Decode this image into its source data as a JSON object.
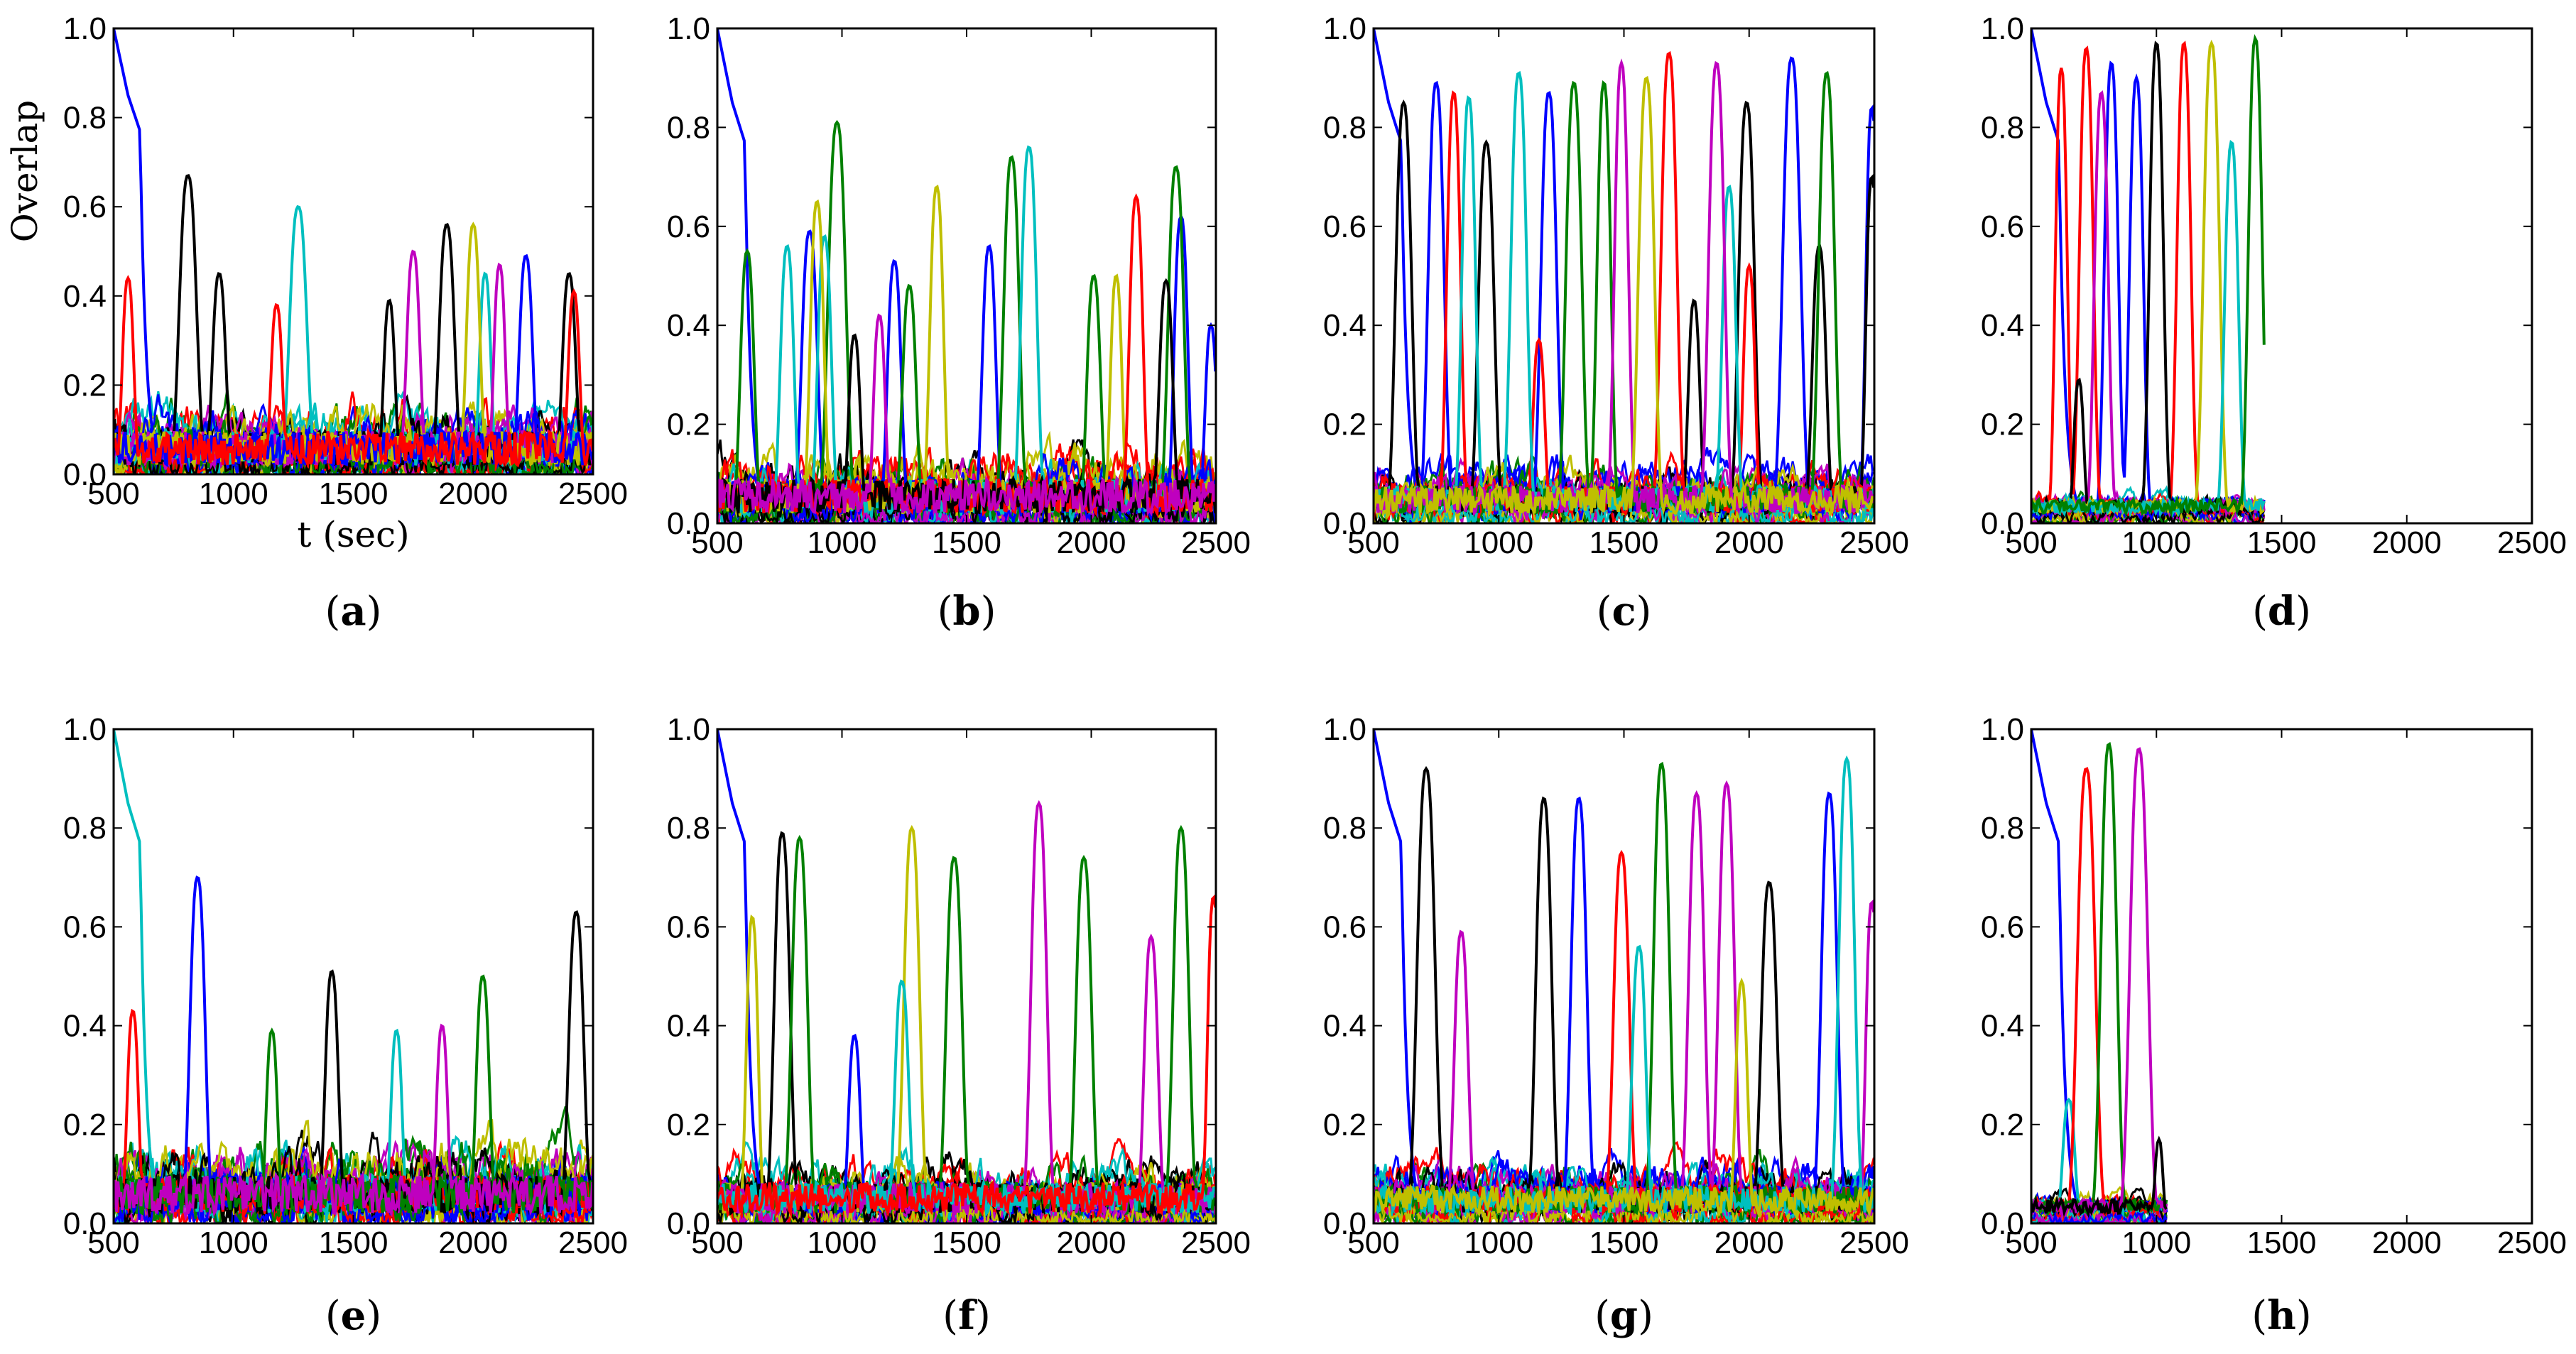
{
  "figure": {
    "colors": [
      "#0000ff",
      "#008000",
      "#ff0000",
      "#00bfbf",
      "#bf00bf",
      "#bfbf00",
      "#000000"
    ],
    "ylabel": "Overlap",
    "xlabel": "t (sec)"
  },
  "chart_data": [
    {
      "type": "line",
      "panel": "a",
      "label_open": "(",
      "label_letter": "a",
      "label_close": ")",
      "xlim": [
        500,
        2500
      ],
      "ylim": [
        0,
        1
      ],
      "xticks": [
        "500",
        "1000",
        "1500",
        "2000",
        "2500"
      ],
      "yticks": [
        "0.0",
        "0.2",
        "0.4",
        "0.6",
        "0.8",
        "1.0"
      ],
      "xlabel": "t (sec)",
      "ylabel": "Overlap",
      "end_x": 2500,
      "noise_level": 0.22,
      "series": [
        {
          "name": "initial",
          "color": "#0000ff",
          "init_decay": true,
          "peaks": []
        },
        {
          "name": "black",
          "color": "#000000",
          "peaks": [
            [
              810,
              0.67,
              45
            ],
            [
              940,
              0.45,
              35
            ],
            [
              1650,
              0.39,
              30
            ],
            [
              1890,
              0.56,
              40
            ],
            [
              2400,
              0.45,
              35
            ]
          ]
        },
        {
          "name": "cyan",
          "color": "#00bfbf",
          "peaks": [
            [
              1270,
              0.6,
              45
            ],
            [
              2050,
              0.45,
              30
            ]
          ]
        },
        {
          "name": "magenta",
          "color": "#bf00bf",
          "peaks": [
            [
              1750,
              0.5,
              35
            ],
            [
              2110,
              0.47,
              30
            ]
          ]
        },
        {
          "name": "yellow",
          "color": "#bfbf00",
          "peaks": [
            [
              2000,
              0.56,
              35
            ]
          ]
        },
        {
          "name": "blue2",
          "color": "#0000ff",
          "peaks": [
            [
              2220,
              0.49,
              35
            ]
          ]
        },
        {
          "name": "red",
          "color": "#ff0000",
          "peaks": [
            [
              560,
              0.44,
              30
            ],
            [
              1180,
              0.38,
              30
            ],
            [
              2420,
              0.41,
              30
            ]
          ]
        }
      ]
    },
    {
      "type": "line",
      "panel": "b",
      "label_open": "(",
      "label_letter": "b",
      "label_close": ")",
      "xlim": [
        500,
        2500
      ],
      "ylim": [
        0,
        1
      ],
      "xticks": [
        "500",
        "1000",
        "1500",
        "2000",
        "2500"
      ],
      "yticks": [
        "0.0",
        "0.2",
        "0.4",
        "0.6",
        "0.8",
        "1.0"
      ],
      "end_x": 2500,
      "noise_level": 0.2,
      "series": [
        {
          "name": "initial",
          "color": "#0000ff",
          "init_decay": true,
          "peaks": [
            [
              870,
              0.59,
              40
            ],
            [
              1210,
              0.53,
              35
            ],
            [
              1590,
              0.56,
              35
            ],
            [
              2360,
              0.62,
              35
            ],
            [
              2480,
              0.4,
              30
            ]
          ]
        },
        {
          "name": "green",
          "color": "#008000",
          "peaks": [
            [
              620,
              0.55,
              35
            ],
            [
              980,
              0.81,
              45
            ],
            [
              1270,
              0.48,
              35
            ],
            [
              1680,
              0.74,
              40
            ],
            [
              2010,
              0.5,
              35
            ],
            [
              2340,
              0.72,
              40
            ]
          ]
        },
        {
          "name": "cyan",
          "color": "#00bfbf",
          "peaks": [
            [
              780,
              0.56,
              35
            ],
            [
              930,
              0.58,
              35
            ],
            [
              1750,
              0.76,
              40
            ]
          ]
        },
        {
          "name": "yellow",
          "color": "#bfbf00",
          "peaks": [
            [
              900,
              0.65,
              35
            ],
            [
              1380,
              0.68,
              35
            ],
            [
              2100,
              0.5,
              30
            ]
          ]
        },
        {
          "name": "red",
          "color": "#ff0000",
          "peaks": [
            [
              2180,
              0.66,
              35
            ]
          ]
        },
        {
          "name": "black",
          "color": "#000000",
          "peaks": [
            [
              1050,
              0.38,
              30
            ],
            [
              2300,
              0.49,
              35
            ]
          ]
        },
        {
          "name": "magenta",
          "color": "#bf00bf",
          "peaks": [
            [
              1150,
              0.42,
              30
            ]
          ]
        }
      ]
    },
    {
      "type": "line",
      "panel": "c",
      "label_open": "(",
      "label_letter": "c",
      "label_close": ")",
      "xlim": [
        500,
        2500
      ],
      "ylim": [
        0,
        1
      ],
      "xticks": [
        "500",
        "1000",
        "1500",
        "2000",
        "2500"
      ],
      "yticks": [
        "0.0",
        "0.2",
        "0.4",
        "0.6",
        "0.8",
        "1.0"
      ],
      "end_x": 2500,
      "noise_level": 0.16,
      "series": [
        {
          "name": "initial",
          "color": "#0000ff",
          "init_decay": true,
          "peaks": [
            [
              750,
              0.89,
              40
            ],
            [
              1200,
              0.87,
              40
            ],
            [
              2170,
              0.94,
              45
            ],
            [
              2490,
              0.84,
              30
            ]
          ]
        },
        {
          "name": "black",
          "color": "#000000",
          "peaks": [
            [
              620,
              0.85,
              40
            ],
            [
              950,
              0.77,
              40
            ],
            [
              1780,
              0.45,
              30
            ],
            [
              1990,
              0.85,
              40
            ],
            [
              2280,
              0.56,
              35
            ],
            [
              2490,
              0.7,
              30
            ]
          ]
        },
        {
          "name": "red",
          "color": "#ff0000",
          "peaks": [
            [
              820,
              0.87,
              35
            ],
            [
              1160,
              0.37,
              30
            ],
            [
              1680,
              0.95,
              40
            ],
            [
              2000,
              0.52,
              30
            ]
          ]
        },
        {
          "name": "cyan",
          "color": "#00bfbf",
          "peaks": [
            [
              880,
              0.86,
              35
            ],
            [
              1080,
              0.91,
              40
            ],
            [
              1920,
              0.68,
              35
            ]
          ]
        },
        {
          "name": "green",
          "color": "#008000",
          "peaks": [
            [
              1300,
              0.89,
              40
            ],
            [
              1420,
              0.89,
              35
            ],
            [
              2310,
              0.91,
              40
            ]
          ]
        },
        {
          "name": "magenta",
          "color": "#bf00bf",
          "peaks": [
            [
              1490,
              0.93,
              35
            ],
            [
              1870,
              0.93,
              40
            ]
          ]
        },
        {
          "name": "yellow",
          "color": "#bfbf00",
          "peaks": [
            [
              1590,
              0.9,
              40
            ]
          ]
        }
      ]
    },
    {
      "type": "line",
      "panel": "d",
      "label_open": "(",
      "label_letter": "d",
      "label_close": ")",
      "xlim": [
        500,
        2500
      ],
      "ylim": [
        0,
        1
      ],
      "xticks": [
        "500",
        "1000",
        "1500",
        "2000",
        "2500"
      ],
      "yticks": [
        "0.0",
        "0.2",
        "0.4",
        "0.6",
        "0.8",
        "1.0"
      ],
      "end_x": 1430,
      "noise_level": 0.08,
      "series": [
        {
          "name": "initial",
          "color": "#0000ff",
          "init_decay": true,
          "peaks": [
            [
              820,
              0.93,
              35
            ],
            [
              920,
              0.9,
              35
            ]
          ]
        },
        {
          "name": "red",
          "color": "#ff0000",
          "peaks": [
            [
              620,
              0.92,
              30
            ],
            [
              720,
              0.96,
              35
            ],
            [
              1110,
              0.97,
              35
            ]
          ]
        },
        {
          "name": "magenta",
          "color": "#bf00bf",
          "peaks": [
            [
              780,
              0.87,
              35
            ]
          ]
        },
        {
          "name": "black",
          "color": "#000000",
          "peaks": [
            [
              690,
              0.29,
              25
            ],
            [
              1000,
              0.97,
              35
            ]
          ]
        },
        {
          "name": "yellow",
          "color": "#bfbf00",
          "peaks": [
            [
              1220,
              0.97,
              40
            ]
          ]
        },
        {
          "name": "cyan",
          "color": "#00bfbf",
          "peaks": [
            [
              1300,
              0.77,
              35
            ]
          ]
        },
        {
          "name": "green",
          "color": "#008000",
          "peaks": [
            [
              1395,
              0.98,
              35
            ]
          ]
        }
      ]
    },
    {
      "type": "line",
      "panel": "e",
      "label_open": "(",
      "label_letter": "e",
      "label_close": ")",
      "xlim": [
        500,
        2500
      ],
      "ylim": [
        0,
        1
      ],
      "xticks": [
        "500",
        "1000",
        "1500",
        "2000",
        "2500"
      ],
      "yticks": [
        "0.0",
        "0.2",
        "0.4",
        "0.6",
        "0.8",
        "1.0"
      ],
      "end_x": 2500,
      "noise_level": 0.22,
      "series": [
        {
          "name": "initial",
          "color": "#00bfbf",
          "init_decay": true,
          "peaks": [
            [
              1680,
              0.39,
              30
            ]
          ]
        },
        {
          "name": "blue",
          "color": "#0000ff",
          "peaks": [
            [
              850,
              0.7,
              40
            ]
          ]
        },
        {
          "name": "red",
          "color": "#ff0000",
          "peaks": [
            [
              580,
              0.43,
              30
            ]
          ]
        },
        {
          "name": "black",
          "color": "#000000",
          "peaks": [
            [
              1410,
              0.51,
              35
            ],
            [
              2430,
              0.63,
              40
            ]
          ]
        },
        {
          "name": "green",
          "color": "#008000",
          "peaks": [
            [
              1160,
              0.39,
              30
            ],
            [
              2040,
              0.5,
              35
            ]
          ]
        },
        {
          "name": "magenta",
          "color": "#bf00bf",
          "peaks": [
            [
              1870,
              0.4,
              30
            ]
          ]
        }
      ]
    },
    {
      "type": "line",
      "panel": "f",
      "label_open": "(",
      "label_letter": "f",
      "label_close": ")",
      "xlim": [
        500,
        2500
      ],
      "ylim": [
        0,
        1
      ],
      "xticks": [
        "500",
        "1000",
        "1500",
        "2000",
        "2500"
      ],
      "yticks": [
        "0.0",
        "0.2",
        "0.4",
        "0.6",
        "0.8",
        "1.0"
      ],
      "end_x": 2500,
      "noise_level": 0.18,
      "series": [
        {
          "name": "initial",
          "color": "#0000ff",
          "init_decay": true,
          "peaks": [
            [
              1050,
              0.38,
              30
            ]
          ]
        },
        {
          "name": "yellow",
          "color": "#bfbf00",
          "peaks": [
            [
              640,
              0.62,
              30
            ],
            [
              1280,
              0.8,
              40
            ]
          ]
        },
        {
          "name": "black",
          "color": "#000000",
          "peaks": [
            [
              760,
              0.79,
              40
            ]
          ]
        },
        {
          "name": "green",
          "color": "#008000",
          "peaks": [
            [
              830,
              0.78,
              40
            ],
            [
              1450,
              0.74,
              40
            ],
            [
              1970,
              0.74,
              40
            ],
            [
              2360,
              0.8,
              40
            ]
          ]
        },
        {
          "name": "magenta",
          "color": "#bf00bf",
          "peaks": [
            [
              1790,
              0.85,
              40
            ],
            [
              2240,
              0.58,
              35
            ]
          ]
        },
        {
          "name": "cyan",
          "color": "#00bfbf",
          "peaks": [
            [
              1240,
              0.49,
              35
            ]
          ]
        },
        {
          "name": "red",
          "color": "#ff0000",
          "peaks": [
            [
              2490,
              0.66,
              30
            ]
          ]
        }
      ]
    },
    {
      "type": "line",
      "panel": "g",
      "label_open": "(",
      "label_letter": "g",
      "label_close": ")",
      "xlim": [
        500,
        2500
      ],
      "ylim": [
        0,
        1
      ],
      "xticks": [
        "500",
        "1000",
        "1500",
        "2000",
        "2500"
      ],
      "yticks": [
        "0.0",
        "0.2",
        "0.4",
        "0.6",
        "0.8",
        "1.0"
      ],
      "end_x": 2500,
      "noise_level": 0.16,
      "series": [
        {
          "name": "initial",
          "color": "#0000ff",
          "init_decay": true,
          "peaks": [
            [
              1320,
              0.86,
              40
            ],
            [
              2320,
              0.87,
              40
            ]
          ]
        },
        {
          "name": "black",
          "color": "#000000",
          "peaks": [
            [
              710,
              0.92,
              45
            ],
            [
              1180,
              0.86,
              40
            ],
            [
              2080,
              0.69,
              40
            ]
          ]
        },
        {
          "name": "magenta",
          "color": "#bf00bf",
          "peaks": [
            [
              850,
              0.59,
              35
            ],
            [
              1790,
              0.87,
              40
            ],
            [
              1910,
              0.89,
              40
            ],
            [
              2490,
              0.65,
              30
            ]
          ]
        },
        {
          "name": "red",
          "color": "#ff0000",
          "peaks": [
            [
              1490,
              0.75,
              40
            ]
          ]
        },
        {
          "name": "green",
          "color": "#008000",
          "peaks": [
            [
              1650,
              0.93,
              40
            ]
          ]
        },
        {
          "name": "cyan",
          "color": "#00bfbf",
          "peaks": [
            [
              1560,
              0.56,
              35
            ],
            [
              2390,
              0.94,
              40
            ]
          ]
        },
        {
          "name": "yellow",
          "color": "#bfbf00",
          "peaks": [
            [
              1970,
              0.49,
              30
            ]
          ]
        }
      ]
    },
    {
      "type": "line",
      "panel": "h",
      "label_open": "(",
      "label_letter": "h",
      "label_close": ")",
      "xlim": [
        500,
        2500
      ],
      "ylim": [
        0,
        1
      ],
      "xticks": [
        "500",
        "1000",
        "1500",
        "2000",
        "2500"
      ],
      "yticks": [
        "0.0",
        "0.2",
        "0.4",
        "0.6",
        "0.8",
        "1.0"
      ],
      "end_x": 1040,
      "noise_level": 0.08,
      "series": [
        {
          "name": "initial",
          "color": "#0000ff",
          "init_decay": true,
          "peaks": []
        },
        {
          "name": "cyan",
          "color": "#00bfbf",
          "peaks": [
            [
              650,
              0.25,
              30
            ]
          ]
        },
        {
          "name": "red",
          "color": "#ff0000",
          "peaks": [
            [
              720,
              0.92,
              45
            ]
          ]
        },
        {
          "name": "green",
          "color": "#008000",
          "peaks": [
            [
              810,
              0.97,
              40
            ]
          ]
        },
        {
          "name": "magenta",
          "color": "#bf00bf",
          "peaks": [
            [
              930,
              0.96,
              45
            ]
          ]
        },
        {
          "name": "black",
          "color": "#000000",
          "peaks": [
            [
              1010,
              0.17,
              20
            ]
          ]
        }
      ]
    }
  ]
}
